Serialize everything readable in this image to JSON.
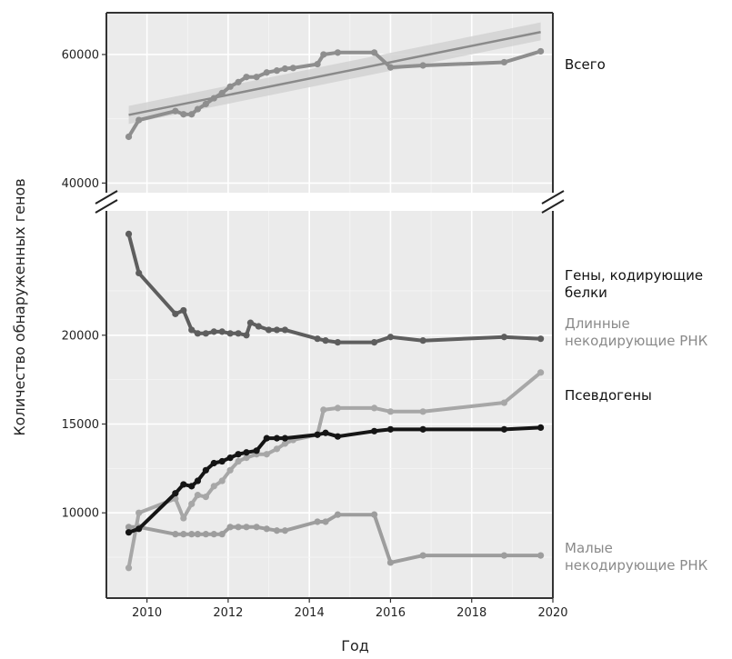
{
  "chart_data": {
    "type": "line",
    "xlabel": "Год",
    "ylabel": "Количество обнаруженных генов",
    "x_ticks": [
      "2010",
      "2012",
      "2014",
      "2016",
      "2018",
      "2020"
    ],
    "xlim": [
      2009.0,
      2020.0
    ],
    "grid": true,
    "axis_break": true,
    "panels": [
      {
        "name": "upper",
        "ylim": [
          38500,
          66500
        ],
        "y_ticks": [
          "40000",
          "60000"
        ],
        "series": [
          {
            "name": "Всего",
            "color": "#8e8e8e",
            "x": [
              2009.55,
              2009.8,
              2010.7,
              2010.9,
              2011.1,
              2011.25,
              2011.45,
              2011.65,
              2011.85,
              2012.05,
              2012.25,
              2012.45,
              2012.7,
              2012.95,
              2013.2,
              2013.4,
              2013.6,
              2014.2,
              2014.35,
              2014.7,
              2015.6,
              2016.0,
              2016.8,
              2018.8,
              2019.7
            ],
            "y": [
              47200,
              49800,
              51200,
              50700,
              50700,
              51500,
              52300,
              53200,
              54000,
              55000,
              55700,
              56500,
              56500,
              57200,
              57500,
              57800,
              57900,
              58500,
              60000,
              60300,
              60300,
              58000,
              58300,
              58800,
              60500
            ]
          }
        ],
        "trend": {
          "x": [
            2009.55,
            2019.7
          ],
          "y": [
            50600,
            63500
          ],
          "band_low": [
            49200,
            62200
          ],
          "band_high": [
            52000,
            65000
          ],
          "color": "#8a8a8a"
        }
      },
      {
        "name": "lower",
        "ylim": [
          5200,
          27000
        ],
        "y_ticks": [
          "10000",
          "15000",
          "20000"
        ],
        "series": [
          {
            "name": "Гены, кодирующие белки",
            "color": "#5e5e5e",
            "x": [
              2009.55,
              2009.8,
              2010.7,
              2010.9,
              2011.1,
              2011.25,
              2011.45,
              2011.65,
              2011.85,
              2012.05,
              2012.25,
              2012.45,
              2012.55,
              2012.75,
              2013.0,
              2013.2,
              2013.4,
              2014.2,
              2014.4,
              2014.7,
              2015.6,
              2016.0,
              2016.8,
              2018.8,
              2019.7
            ],
            "y": [
              25700,
              23500,
              21200,
              21400,
              20300,
              20100,
              20100,
              20200,
              20200,
              20100,
              20100,
              20000,
              20700,
              20500,
              20300,
              20300,
              20300,
              19800,
              19700,
              19600,
              19600,
              19900,
              19700,
              19900,
              19800
            ]
          },
          {
            "name": "Длинные некодирующие РНК",
            "color": "#a7a7a7",
            "x": [
              2009.55,
              2009.8,
              2010.7,
              2010.9,
              2011.1,
              2011.25,
              2011.45,
              2011.65,
              2011.85,
              2012.05,
              2012.25,
              2012.45,
              2012.7,
              2012.95,
              2013.2,
              2013.4,
              2013.6,
              2014.2,
              2014.35,
              2014.7,
              2015.6,
              2016.0,
              2016.8,
              2018.8,
              2019.7
            ],
            "y": [
              6900,
              10000,
              10800,
              9700,
              10500,
              11000,
              10900,
              11500,
              11800,
              12400,
              12900,
              13100,
              13300,
              13300,
              13600,
              13900,
              14100,
              14400,
              15800,
              15900,
              15900,
              15700,
              15700,
              16200,
              17900
            ]
          },
          {
            "name": "Псевдогены",
            "color": "#151515",
            "x": [
              2009.55,
              2009.8,
              2010.7,
              2010.9,
              2011.1,
              2011.25,
              2011.45,
              2011.65,
              2011.85,
              2012.05,
              2012.25,
              2012.45,
              2012.7,
              2012.95,
              2013.2,
              2013.4,
              2014.2,
              2014.4,
              2014.7,
              2015.6,
              2016.0,
              2016.8,
              2018.8,
              2019.7
            ],
            "y": [
              8900,
              9100,
              11100,
              11600,
              11500,
              11800,
              12400,
              12800,
              12900,
              13100,
              13300,
              13400,
              13500,
              14200,
              14200,
              14200,
              14400,
              14500,
              14300,
              14600,
              14700,
              14700,
              14700,
              14800
            ]
          },
          {
            "name": "Малые некодирующие РНК",
            "color": "#9d9d9d",
            "x": [
              2009.55,
              2009.8,
              2010.7,
              2010.9,
              2011.1,
              2011.25,
              2011.45,
              2011.65,
              2011.85,
              2012.05,
              2012.25,
              2012.45,
              2012.7,
              2012.95,
              2013.2,
              2013.4,
              2014.2,
              2014.4,
              2014.7,
              2015.6,
              2016.0,
              2016.8,
              2018.8,
              2019.7
            ],
            "y": [
              9200,
              9200,
              8800,
              8800,
              8800,
              8800,
              8800,
              8800,
              8800,
              9200,
              9200,
              9200,
              9200,
              9100,
              9000,
              9000,
              9500,
              9500,
              9900,
              9900,
              7200,
              7600,
              7600,
              7600
            ]
          }
        ]
      }
    ],
    "labels": [
      {
        "series": "Всего",
        "lines": [
          "Всего"
        ],
        "color": "#111111"
      },
      {
        "series": "Гены, кодирующие белки",
        "lines": [
          "Гены, кодирующие",
          "белки"
        ],
        "color": "#111111"
      },
      {
        "series": "Длинные некодирующие РНК",
        "lines": [
          "Длинные",
          "некодирующие РНК"
        ],
        "color": "#8a8a8a"
      },
      {
        "series": "Псевдогены",
        "lines": [
          "Псевдогены"
        ],
        "color": "#111111"
      },
      {
        "series": "Малые некодирующие РНК",
        "lines": [
          "Малые",
          "некодирующие РНК"
        ],
        "color": "#8a8a8a"
      }
    ]
  }
}
